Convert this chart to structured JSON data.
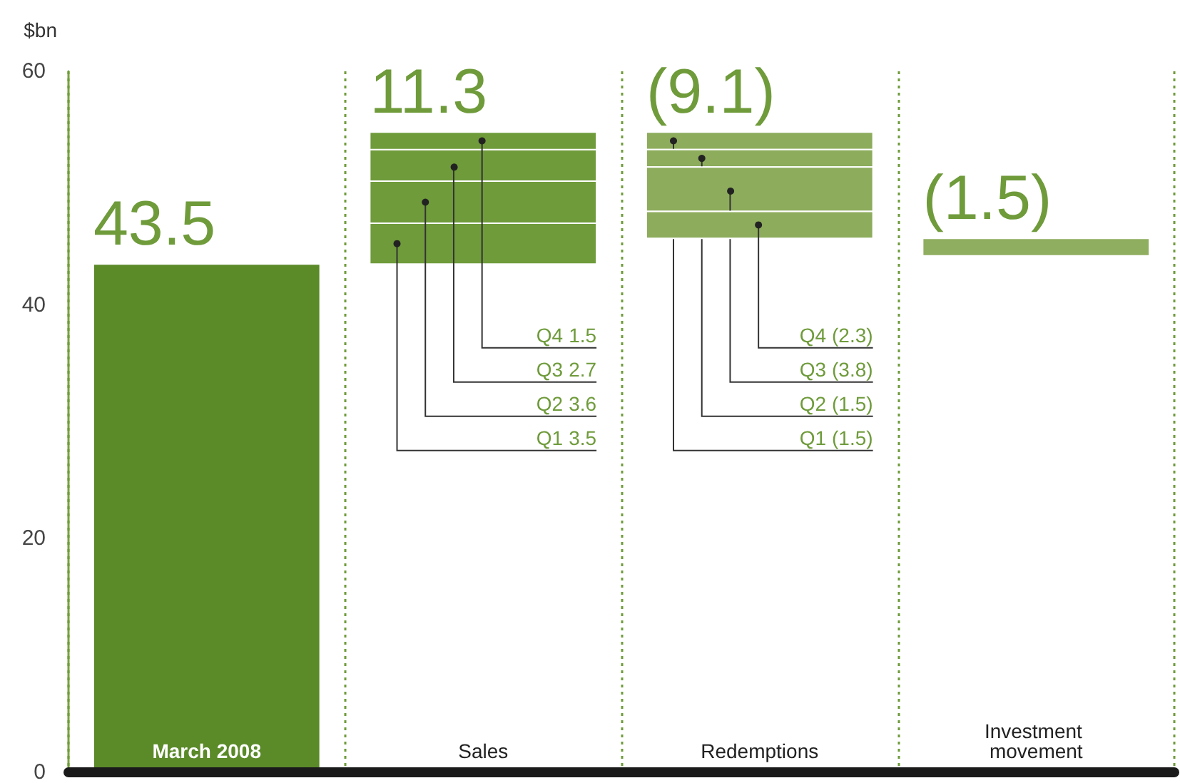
{
  "chart_data": {
    "type": "bar",
    "ylabel": "$bn",
    "categories": [
      "March 2008",
      "Sales",
      "Redemptions",
      "Investment movement"
    ],
    "series": [
      {
        "name": "Q1",
        "colors": [
          null,
          "#6f9b3b",
          "#8dac5c",
          null
        ],
        "base": [
          null,
          43.5,
          54.8,
          null
        ],
        "values": [
          null,
          3.5,
          -1.5,
          null
        ],
        "value_labels": [
          null,
          "3.5",
          "(1.5)",
          null
        ]
      },
      {
        "name": "Q2",
        "colors": [
          null,
          "#6f9b3b",
          "#8dac5c",
          null
        ],
        "base": [
          null,
          47,
          53.3,
          null
        ],
        "values": [
          null,
          3.6,
          -1.5,
          null
        ],
        "value_labels": [
          null,
          "3.6",
          "(1.5)",
          null
        ]
      },
      {
        "name": "Q3",
        "colors": [
          null,
          "#6f9b3b",
          "#8dac5c",
          null
        ],
        "base": [
          null,
          50.6,
          51.8,
          null
        ],
        "values": [
          null,
          2.7,
          -3.8,
          null
        ],
        "value_labels": [
          null,
          "2.7",
          "(3.8)",
          null
        ]
      },
      {
        "name": "Q4",
        "colors": [
          null,
          "#6f9b3b",
          "#8dac5c",
          null
        ],
        "base": [
          null,
          53.3,
          48,
          null
        ],
        "values": [
          null,
          1.5,
          -2.3,
          null
        ],
        "value_labels": [
          null,
          "1.5",
          "(2.3)",
          null
        ]
      },
      {
        "colors": [
          "#5b8a29",
          null,
          null,
          "#8fae5f"
        ],
        "base": [
          0,
          null,
          null,
          45.7
        ],
        "values": [
          43.5,
          null,
          null,
          -1.5
        ],
        "value_labels": [
          "43.5",
          null,
          null,
          "(1.5)"
        ]
      }
    ],
    "annotations": [
      {
        "text": "11.3",
        "x": "Sales",
        "y": 54.8
      },
      {
        "text": "(9.1)",
        "x": "Redemptions",
        "y": 54.8
      }
    ],
    "ylim": [
      0,
      60
    ],
    "yticks": [
      0,
      20,
      40,
      60
    ],
    "grid": "x",
    "legend": false
  }
}
